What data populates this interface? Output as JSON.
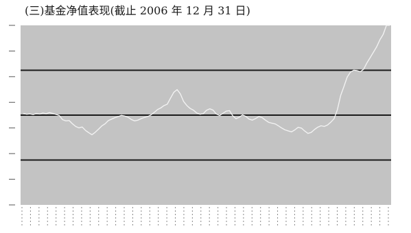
{
  "title": "(三)基金净值表现(截止 2006 年 12 月 31 日)",
  "chart_data": {
    "type": "line",
    "title": "(三)基金净值表现(截止 2006 年 12 月 31 日)",
    "xlabel": "",
    "ylabel": "",
    "y_ticks": [
      "",
      "",
      "",
      "",
      "",
      "",
      "",
      ""
    ],
    "x_tick_labels": [],
    "reference_lines": [
      0.25,
      0.5,
      0.75
    ],
    "grid": false,
    "background_color": "#c3c3c3",
    "reference_line_color": "#1a1a1a",
    "series": [
      {
        "color": "#f2f2f2",
        "values": [
          0.51,
          0.505,
          0.507,
          0.503,
          0.509,
          0.506,
          0.512,
          0.508,
          0.514,
          0.509,
          0.504,
          0.498,
          0.475,
          0.468,
          0.47,
          0.452,
          0.437,
          0.429,
          0.434,
          0.415,
          0.402,
          0.391,
          0.405,
          0.422,
          0.44,
          0.452,
          0.47,
          0.478,
          0.486,
          0.492,
          0.499,
          0.495,
          0.488,
          0.476,
          0.468,
          0.472,
          0.48,
          0.487,
          0.492,
          0.501,
          0.515,
          0.531,
          0.54,
          0.553,
          0.561,
          0.595,
          0.627,
          0.642,
          0.618,
          0.576,
          0.553,
          0.537,
          0.528,
          0.512,
          0.505,
          0.508,
          0.527,
          0.535,
          0.528,
          0.506,
          0.498,
          0.51,
          0.522,
          0.525,
          0.497,
          0.48,
          0.488,
          0.501,
          0.493,
          0.478,
          0.472,
          0.481,
          0.492,
          0.486,
          0.472,
          0.46,
          0.455,
          0.451,
          0.44,
          0.428,
          0.418,
          0.412,
          0.407,
          0.418,
          0.432,
          0.428,
          0.412,
          0.398,
          0.404,
          0.42,
          0.433,
          0.441,
          0.437,
          0.445,
          0.461,
          0.48,
          0.53,
          0.61,
          0.66,
          0.712,
          0.74,
          0.75,
          0.748,
          0.742,
          0.755,
          0.79,
          0.82,
          0.85,
          0.88,
          0.92,
          0.95,
          1.03,
          1.07
        ]
      }
    ]
  }
}
